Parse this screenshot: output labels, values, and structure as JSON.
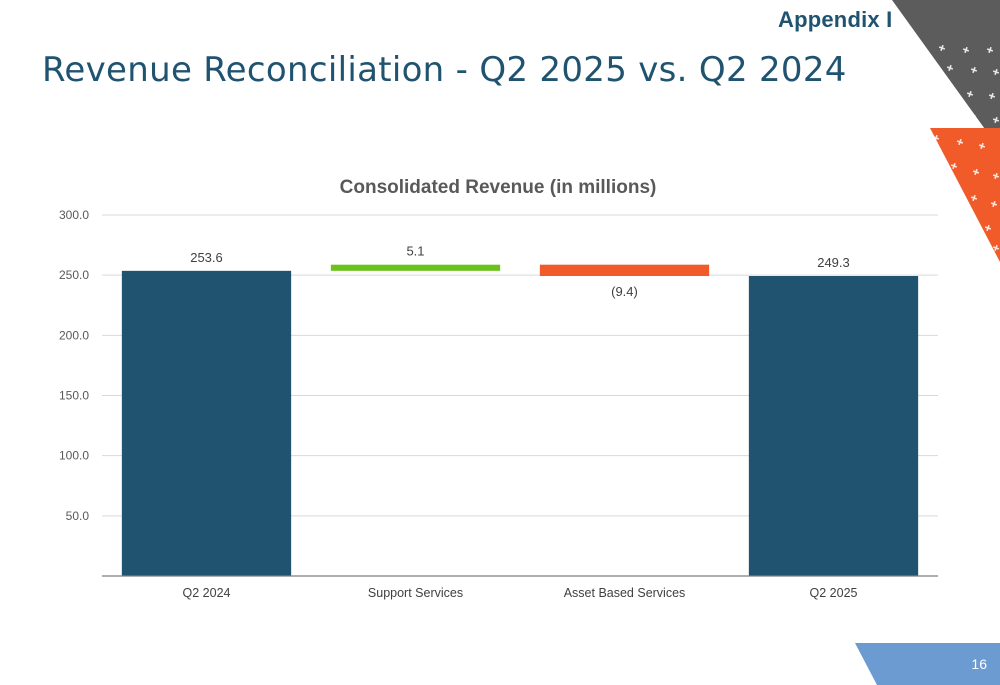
{
  "header": {
    "appendix_label": "Appendix I",
    "title": "Revenue Reconciliation - Q2 2025 vs. Q2 2024"
  },
  "footer": {
    "page_number": "16"
  },
  "colors": {
    "total": "#1f5370",
    "increase": "#6cc21d",
    "decrease": "#f15a29",
    "accent_blue": "#6b9bd1",
    "gray": "#5c5c5c"
  },
  "chart_data": {
    "type": "bar",
    "subtype": "waterfall",
    "title": "Consolidated Revenue (in millions)",
    "categories": [
      "Q2 2024",
      "Support Services",
      "Asset Based Services",
      "Q2 2025"
    ],
    "values": [
      253.6,
      5.1,
      -9.4,
      249.3
    ],
    "kinds": [
      "total",
      "increase",
      "decrease",
      "total"
    ],
    "data_labels": [
      "253.6",
      "5.1",
      "(9.4)",
      "249.3"
    ],
    "ylim": [
      0,
      300
    ],
    "yticks": [
      50,
      100,
      150,
      200,
      250,
      300
    ],
    "ytick_labels": [
      "50.0",
      "100.0",
      "150.0",
      "200.0",
      "250.0",
      "300.0"
    ],
    "grid": true,
    "xlabel": "",
    "ylabel": ""
  }
}
